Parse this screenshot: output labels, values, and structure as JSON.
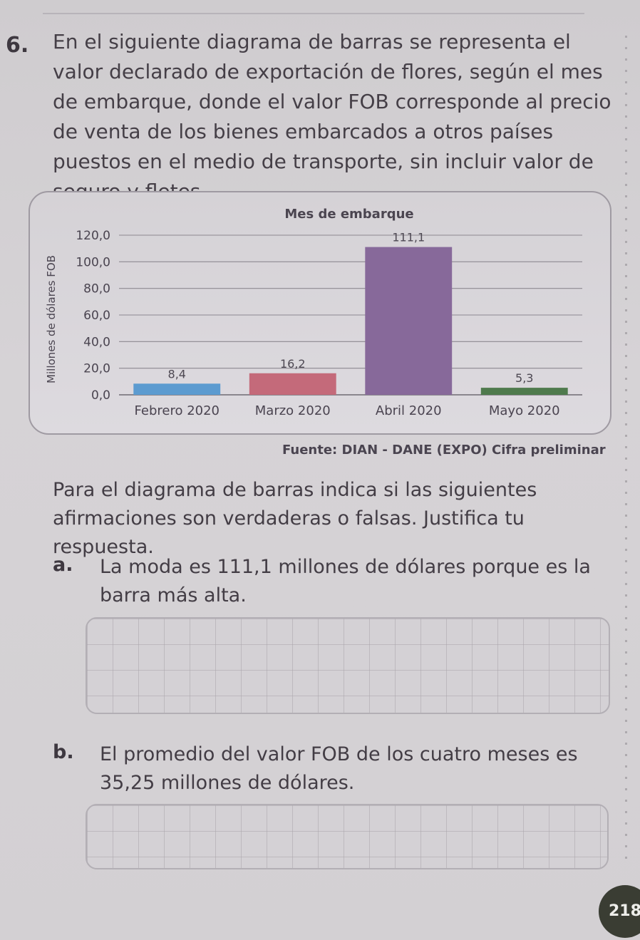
{
  "problem": {
    "number": "6.",
    "text": "En el siguiente diagrama de barras se representa el valor declarado de exportación de flores, según el mes de embarque, donde el valor FOB corresponde al precio de venta de los bienes embarcados a otros países puestos en el medio de transporte, sin incluir valor de seguro y fletes."
  },
  "chart_data": {
    "type": "bar",
    "title": "Mes de embarque",
    "xlabel": "",
    "ylabel": "Millones de dólares FOB",
    "categories": [
      "Febrero 2020",
      "Marzo 2020",
      "Abril 2020",
      "Mayo 2020"
    ],
    "values": [
      8.4,
      16.2,
      111.1,
      5.3
    ],
    "value_labels": [
      "8,4",
      "16,2",
      "111,1",
      "5,3"
    ],
    "bar_colors": [
      "#5c9bd0",
      "#c46a7a",
      "#87699a",
      "#4f7a4d"
    ],
    "ylim": [
      0,
      120
    ],
    "yticks": [
      0,
      20,
      40,
      60,
      80,
      100,
      120
    ],
    "ytick_labels": [
      "0,0",
      "20,0",
      "40,0",
      "60,0",
      "80,0",
      "100,0",
      "120,0"
    ],
    "grid": true,
    "legend": "none"
  },
  "source": "Fuente: DIAN - DANE (EXPO) Cifra preliminar",
  "instructions": "Para el diagrama de barras indica si las siguientes afirmaciones son verdaderas o falsas. Justifica tu respuesta.",
  "items": [
    {
      "letter": "a.",
      "text": "La moda es 111,1 millones de dólares porque es la barra más alta."
    },
    {
      "letter": "b.",
      "text": "El promedio del valor FOB de los cuatro meses es 35,25 millones de dólares."
    }
  ],
  "page_number": "218"
}
